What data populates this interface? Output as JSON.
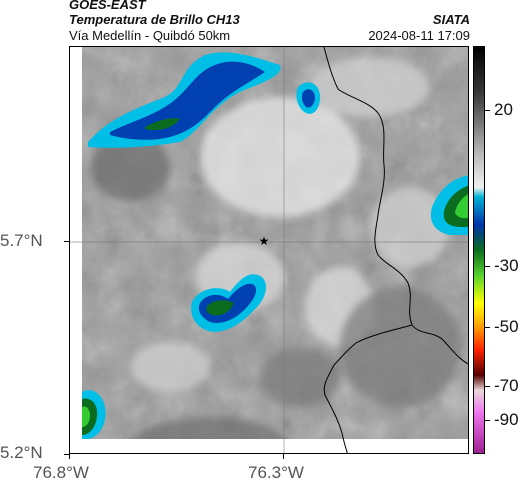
{
  "header": {
    "satellite": "GOES-EAST",
    "product": "Temperatura de Brillo CH13",
    "organization": "SIATA",
    "region": "Vía Medellín - Quibdó 50km",
    "timestamp": "2024-08-11 17:09"
  },
  "axes": {
    "x_ticks": [
      "76.8°W",
      "76.3°W"
    ],
    "y_ticks": [
      "5.7°N",
      "5.2°N"
    ]
  },
  "colorbar": {
    "tick_labels": [
      "20",
      "-30",
      "-50",
      "-70",
      "-90"
    ],
    "ticks_value": [
      20,
      -30,
      -50,
      -70,
      -90
    ],
    "range": [
      -95,
      35
    ],
    "stops": [
      {
        "value": 35,
        "color": "#000000"
      },
      {
        "value": 20,
        "color": "#3a3a3a"
      },
      {
        "value": 0,
        "color": "#bdbdbd"
      },
      {
        "value": -10,
        "color": "#f0f0f0"
      },
      {
        "value": -13,
        "color": "#00b4d8"
      },
      {
        "value": -22,
        "color": "#0033aa"
      },
      {
        "value": -30,
        "color": "#0b6b1f"
      },
      {
        "value": -38,
        "color": "#55d22e"
      },
      {
        "value": -47,
        "color": "#ffff00"
      },
      {
        "value": -55,
        "color": "#ff9900"
      },
      {
        "value": -62,
        "color": "#ff2200"
      },
      {
        "value": -70,
        "color": "#550000"
      },
      {
        "value": -75,
        "color": "#e9d7d9"
      },
      {
        "value": -82,
        "color": "#ee77ee"
      },
      {
        "value": -95,
        "color": "#a02090"
      }
    ]
  },
  "colors": {
    "background": "#ffffff",
    "cloud_top_cyan": "#00bfe6",
    "cloud_top_blue": "#0040b0",
    "cloud_top_green": "#33cc33",
    "border_line": "#000000"
  },
  "map": {
    "marker": "star-icon",
    "features": [
      "department-border",
      "gridlines"
    ]
  }
}
